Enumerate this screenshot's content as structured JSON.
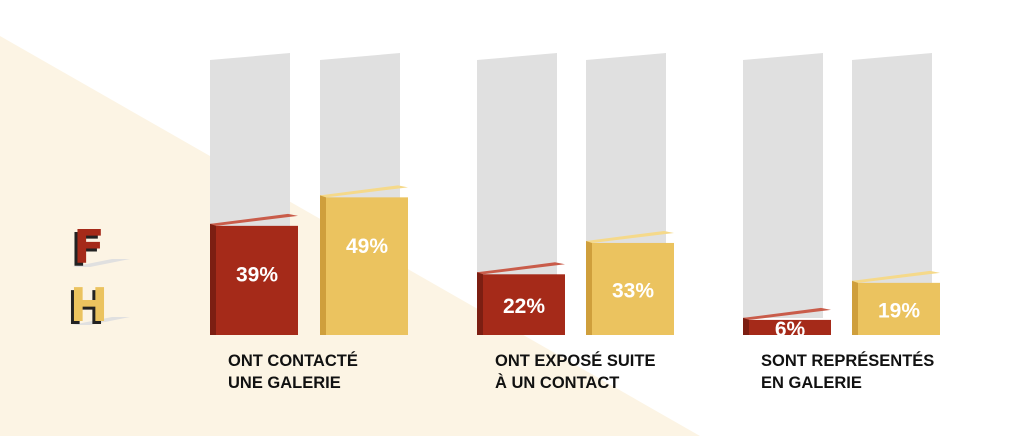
{
  "colors": {
    "f_front": "#a52a19",
    "f_top": "#c95c4a",
    "f_side": "#7c1e12",
    "h_front": "#ebc35f",
    "h_top": "#f5d98a",
    "h_side": "#cf9f3c",
    "track": "#e0e0e0",
    "background_triangle": "#fcf4e4"
  },
  "legend": [
    {
      "letter": "F",
      "series": "F"
    },
    {
      "letter": "H",
      "series": "H"
    }
  ],
  "chart_data": {
    "type": "bar",
    "categories": [
      [
        "ONT CONTACTÉ",
        "UNE GALERIE"
      ],
      [
        "ONT EXPOSÉ SUITE",
        "À UN CONTACT"
      ],
      [
        "SONT REPRÉSENTÉS",
        "EN GALERIE"
      ]
    ],
    "series": [
      {
        "name": "F",
        "values": [
          39,
          22,
          6
        ],
        "labels": [
          "39%",
          "22%",
          "6%"
        ]
      },
      {
        "name": "H",
        "values": [
          49,
          33,
          19
        ],
        "labels": [
          "49%",
          "33%",
          "19%"
        ]
      }
    ],
    "ylim": [
      0,
      100
    ],
    "grid": false,
    "legend_position": "left"
  }
}
